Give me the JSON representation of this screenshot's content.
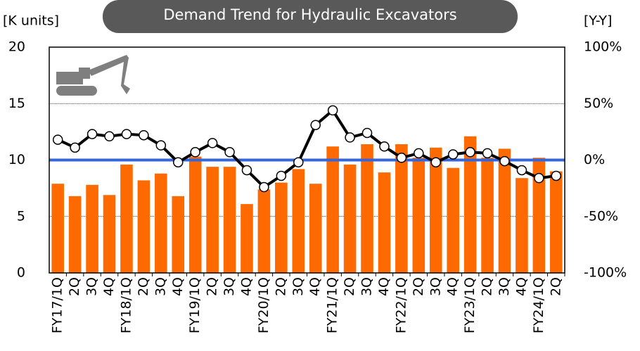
{
  "chart_data": {
    "type": "bar_line",
    "title": "Demand Trend for Hydraulic Excavators",
    "y_label": "[K units]",
    "y2_label": "[Y-Y]",
    "categories": [
      "FY17/1Q",
      "2Q",
      "3Q",
      "4Q",
      "FY18/1Q",
      "2Q",
      "3Q",
      "4Q",
      "FY19/1Q",
      "2Q",
      "3Q",
      "4Q",
      "FY20/1Q",
      "2Q",
      "3Q",
      "4Q",
      "FY21/1Q",
      "2Q",
      "3Q",
      "4Q",
      "FY22/1Q",
      "2Q",
      "3Q",
      "4Q",
      "FY23/1Q",
      "2Q",
      "3Q",
      "4Q",
      "FY24/1Q",
      "2Q"
    ],
    "series": [
      {
        "name": "Demand",
        "color": "#ff6a00",
        "values": [
          7.9,
          6.8,
          7.8,
          6.9,
          9.6,
          8.2,
          8.8,
          6.8,
          10.3,
          9.4,
          9.4,
          6.1,
          7.4,
          8.0,
          9.2,
          7.9,
          11.2,
          9.6,
          11.4,
          8.9,
          11.4,
          10.2,
          11.1,
          9.3,
          12.1,
          10.2,
          11.0,
          8.4,
          10.2,
          9.0
        ]
      },
      {
        "name": "Y-Y",
        "color": "#000000",
        "axis": "y2",
        "values": [
          18,
          11,
          23,
          21,
          23,
          22,
          13,
          -2,
          7,
          15,
          7,
          -9,
          -24,
          -14,
          -2,
          31,
          44,
          20,
          24,
          12,
          2,
          6,
          -2,
          5,
          7,
          6,
          -1,
          -9,
          -16,
          -14
        ]
      }
    ],
    "reference_line": {
      "value": 10,
      "color": "#3366dd"
    },
    "ylim": [
      0,
      20
    ],
    "yticks": [
      0,
      5,
      10,
      15,
      20
    ],
    "y2lim": [
      -100,
      100
    ],
    "y2ticks": [
      {
        "value": -100,
        "label": "-100%"
      },
      {
        "value": -50,
        "label": "-50%"
      },
      {
        "value": 0,
        "label": "0%"
      },
      {
        "value": 50,
        "label": "50%"
      },
      {
        "value": 100,
        "label": "100%"
      }
    ],
    "grid": true
  }
}
